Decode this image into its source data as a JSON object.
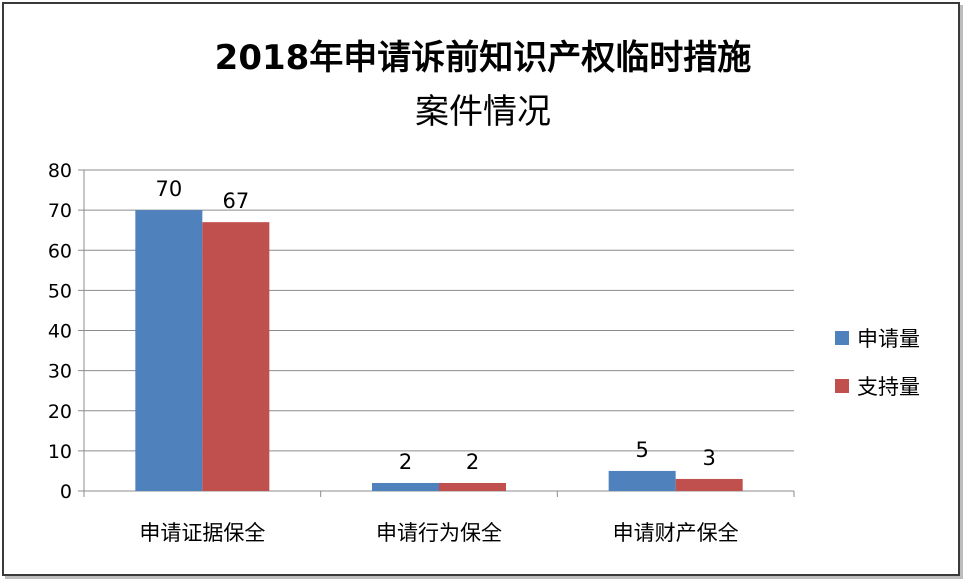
{
  "chart_data": {
    "type": "bar",
    "title_line1": "2018年申请诉前知识产权临时措施",
    "title_line2": "案件情况",
    "categories": [
      "申请证据保全",
      "申请行为保全",
      "申请财产保全"
    ],
    "series": [
      {
        "name": "申请量",
        "values": [
          70,
          2,
          5
        ],
        "color": "#4f81bd"
      },
      {
        "name": "支持量",
        "values": [
          67,
          2,
          3
        ],
        "color": "#c0504d"
      }
    ],
    "ylim": [
      0,
      80
    ],
    "yticks": [
      0,
      10,
      20,
      30,
      40,
      50,
      60,
      70,
      80
    ],
    "grid": true,
    "legend_position": "right"
  }
}
